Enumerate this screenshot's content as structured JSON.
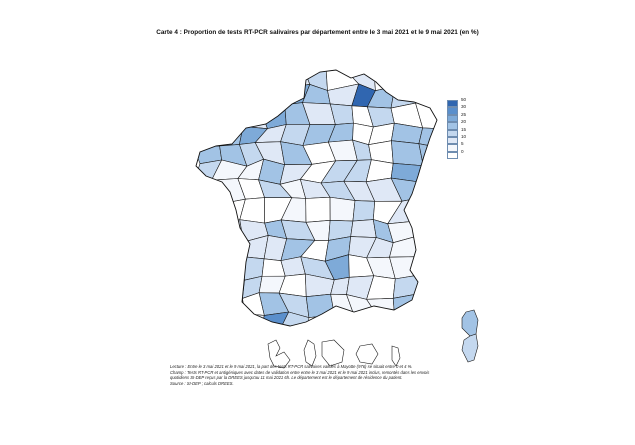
{
  "title": "Carte 4 : Proportion de tests RT-PCR salivaires par département entre le 3 mai 2021 et le 9 mai 2021 (en %)",
  "legend": {
    "labels": [
      "50",
      "30",
      "25",
      "20",
      "15",
      "10",
      "5",
      "0"
    ],
    "colors": [
      "#3066b0",
      "#5a8fcc",
      "#7eaad8",
      "#a2c3e5",
      "#c4d8ef",
      "#dfe8f6",
      "#f4f7fc",
      "#ffffff"
    ]
  },
  "colors": {
    "border": "#1a1a1a",
    "background": "#ffffff"
  },
  "notes": [
    "Lecture : Entre le 3 mai 2021 et le 9 mai 2021, la part des tests RT-PCR salivaires validés à Mayotte (976) se situait entre 0 et 4 %.",
    "Champ : Tests RT-PCR et antigéniques avec dates de validation entre entre le 3 mai 2021 et le 9 mai 2021 inclus, remontés dans les envois",
    "quotidiens SI-DEP reçus par la DREES jusqu'au 11 mai 2021 6h. Le département est le département de résidence du patient.",
    "Source : SI-DEP ; calculs DREES."
  ]
}
